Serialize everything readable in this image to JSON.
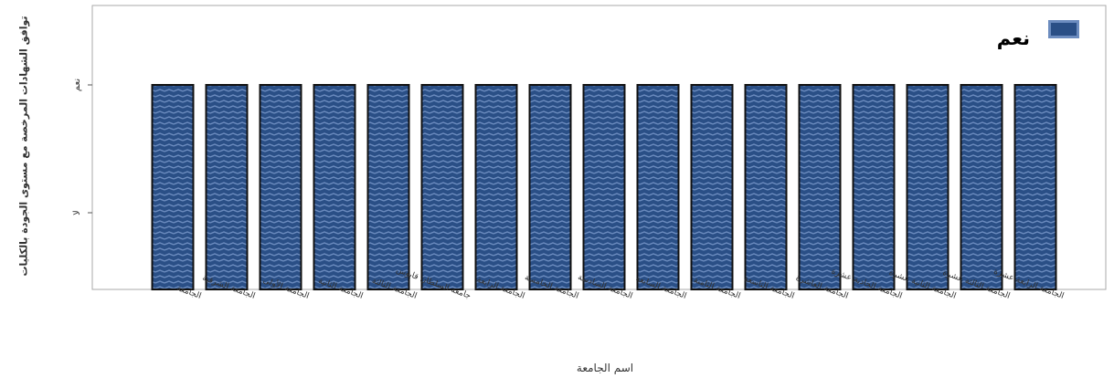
{
  "chart_data": {
    "type": "bar",
    "title": "",
    "ylabel": "توافق الشهادات المرخصة مع مستوى الجودة بالكليات",
    "xlabel": "اسم الجامعة",
    "y_categories": [
      "لا",
      "نعم"
    ],
    "ytick_labels": [
      "نعم",
      "لا"
    ],
    "categories": [
      "الجامعة",
      "الجامعة الشرقية",
      "الجامعة الأولى",
      "الجامعة الثانية",
      "الجامعة الثالثة",
      "جامعة السلطان قابوس",
      "الجامعة الرابعة",
      "الجامعة الخامسة",
      "الجامعة السادسة",
      "الجامعة السابعة",
      "الجامعة الثامنة",
      "الجامعة التاسعة",
      "الجامعة العاشرة",
      "الجامعة الحادية عشرة",
      "الجامعة الثانية عشرة",
      "الجامعة الثالثة عشرة",
      "الجامعة الرابعة عشرة"
    ],
    "series": [
      {
        "name": "نعم",
        "values": [
          "نعم",
          "نعم",
          "نعم",
          "نعم",
          "نعم",
          "نعم",
          "نعم",
          "نعم",
          "نعم",
          "نعم",
          "نعم",
          "نعم",
          "نعم",
          "نعم",
          "نعم",
          "نعم",
          "نعم"
        ]
      }
    ],
    "legend": {
      "position": "top-right",
      "label": "نعم"
    },
    "colors": {
      "bar_fill": "#2a4f86",
      "bar_stripe": "#6c8cbf",
      "bar_edge": "#111111"
    },
    "grid": false
  }
}
